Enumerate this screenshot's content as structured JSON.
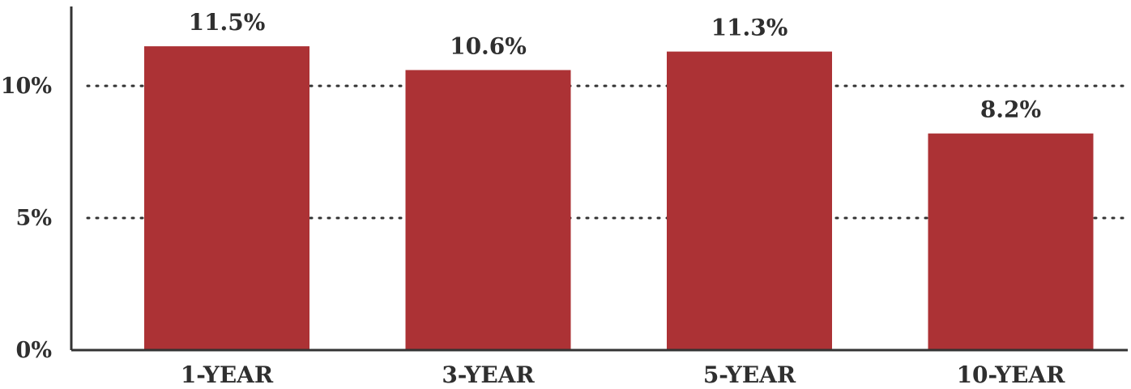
{
  "chart_data": {
    "type": "bar",
    "title": "",
    "xlabel": "",
    "ylabel": "",
    "categories": [
      "1-YEAR",
      "3-YEAR",
      "5-YEAR",
      "10-YEAR"
    ],
    "values": [
      11.5,
      10.6,
      11.3,
      8.2
    ],
    "value_labels": [
      "11.5%",
      "10.6%",
      "11.3%",
      "8.2%"
    ],
    "ylim": [
      0,
      13
    ],
    "yticks": [
      0,
      5,
      10
    ],
    "ytick_labels": [
      "0%",
      "5%",
      "10%"
    ],
    "grid": "horizontal-dotted",
    "legend": "none",
    "bar_color": "#ac3235",
    "text_color": "#2f2f2f",
    "axis_color": "#333333"
  }
}
